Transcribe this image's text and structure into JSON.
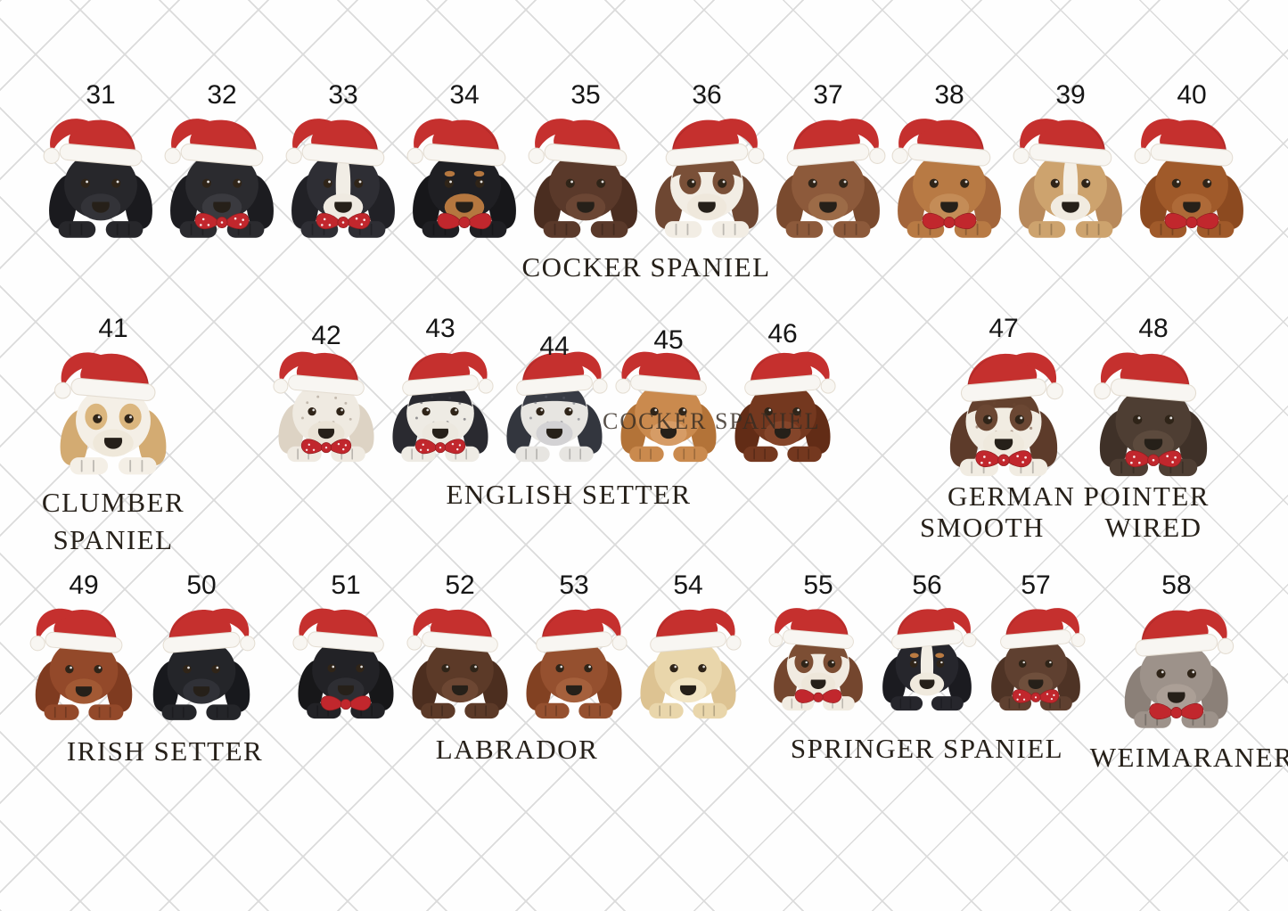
{
  "background": {
    "pattern": "diagonal-grid",
    "line_color": "#dbdbdb",
    "bg_color": "#fefefe"
  },
  "watermark": {
    "text": "COCKER SPANIEL"
  },
  "palette": {
    "hat_red": "#c5302e",
    "hat_fur": "#f8f6f2",
    "bow_red": "#c1272d",
    "label_color": "#262019",
    "number_color": "#161616"
  },
  "groups": [
    {
      "id": "cocker-spaniel",
      "label": "COCKER SPANIEL",
      "dogs": [
        {
          "number": "31",
          "coat": "#27272b",
          "ear": "#1a1a1e",
          "muzzle": "#333338",
          "bow": "none",
          "hat_tilt": "left"
        },
        {
          "number": "32",
          "coat": "#2b2b2f",
          "ear": "#1c1c20",
          "muzzle": "#3a3a3f",
          "bow": "polka",
          "hat_tilt": "left"
        },
        {
          "number": "33",
          "coat": "#2e2e34",
          "ear": "#212126",
          "muzzle": "#efeae1",
          "blaze": "#f1ede5",
          "bow": "polka",
          "hat_tilt": "left"
        },
        {
          "number": "34",
          "coat": "#1f1f23",
          "ear": "#17171a",
          "muzzle": "#b5773f",
          "brow": "#b5773f",
          "bow": "solid",
          "hat_tilt": "left"
        },
        {
          "number": "35",
          "coat": "#5a392a",
          "ear": "#4a2d20",
          "muzzle": "#6b4634",
          "bow": "none",
          "hat_tilt": "left"
        },
        {
          "number": "36",
          "coat": "#f2ede4",
          "ear": "#6e4732",
          "muzzle": "#efe8dc",
          "crown": "#7a5038",
          "eye_patch": "#7a5038",
          "bow": "none",
          "hat_tilt": "right"
        },
        {
          "number": "37",
          "coat": "#8d5a3b",
          "ear": "#7a4a2e",
          "muzzle": "#9c6b47",
          "bow": "none",
          "hat_tilt": "right"
        },
        {
          "number": "38",
          "coat": "#b87a44",
          "ear": "#a3653a",
          "muzzle": "#c48c57",
          "bow": "solid",
          "hat_tilt": "left"
        },
        {
          "number": "39",
          "coat": "#cda36e",
          "ear": "#b8895b",
          "muzzle": "#f1ebe0",
          "blaze": "#f4efe6",
          "bow": "none",
          "hat_tilt": "left"
        },
        {
          "number": "40",
          "coat": "#a05a2a",
          "ear": "#8c4a20",
          "muzzle": "#ae6a38",
          "bow": "solid",
          "hat_tilt": "left"
        }
      ]
    },
    {
      "id": "clumber-spaniel",
      "label_lines": [
        "CLUMBER",
        "SPANIEL"
      ],
      "dogs": [
        {
          "number": "41",
          "coat": "#f4efe6",
          "ear": "#d3ab72",
          "muzzle": "#efe8da",
          "eye_patch": "#dbb67e",
          "bow": "none",
          "hat_tilt": "left"
        }
      ]
    },
    {
      "id": "english-setter",
      "label": "ENGLISH SETTER",
      "dogs": [
        {
          "number": "42",
          "coat": "#efeae1",
          "ear": "#ddd3c4",
          "muzzle": "#eae3d6",
          "ticking": "#97897a",
          "bow": "polka",
          "hat_tilt": "left"
        },
        {
          "number": "43",
          "coat": "#eeebe4",
          "ear": "#2a2a30",
          "muzzle": "#ece8df",
          "crown": "#2a2a30",
          "ticking": "#3c3c44",
          "bow": "polka",
          "hat_tilt": "right"
        },
        {
          "number": "44",
          "coat": "#e7e5e1",
          "ear": "#33363e",
          "muzzle": "#d3d2d4",
          "crown": "#383b44",
          "ticking": "#5a5e68",
          "bow": "none",
          "hat_tilt": "right"
        },
        {
          "number": "45",
          "coat": "#ca8a4e",
          "ear": "#b37338",
          "muzzle": "#d69c66",
          "bow": "none",
          "hat_tilt": "left"
        },
        {
          "number": "46",
          "coat": "#74381f",
          "ear": "#622c16",
          "muzzle": "#84452a",
          "bow": "none",
          "hat_tilt": "right"
        }
      ]
    },
    {
      "id": "german-pointer",
      "label": "GERMAN POINTER",
      "sublabels": [
        "SMOOTH",
        "WIRED"
      ],
      "dogs": [
        {
          "number": "47",
          "coat": "#f1ece2",
          "ear": "#5d3b2a",
          "muzzle": "#efe9dd",
          "crown": "#64412e",
          "eye_patch": "#6b4733",
          "ticking": "#6b4733",
          "bow": "polka",
          "hat_tilt": "right"
        },
        {
          "number": "48",
          "coat": "#4e3e33",
          "ear": "#3f3128",
          "muzzle": "#5c4a3d",
          "bow": "polka",
          "hat_tilt": "left"
        }
      ]
    },
    {
      "id": "irish-setter",
      "label": "IRISH SETTER",
      "dogs": [
        {
          "number": "49",
          "coat": "#93492a",
          "ear": "#7f3b20",
          "muzzle": "#a25934",
          "bow": "none",
          "hat_tilt": "left"
        },
        {
          "number": "50",
          "coat": "#242529",
          "ear": "#18191d",
          "muzzle": "#303137",
          "bow": "none",
          "hat_tilt": "right"
        }
      ]
    },
    {
      "id": "labrador",
      "label": "LABRADOR",
      "dogs": [
        {
          "number": "51",
          "coat": "#222226",
          "ear": "#171719",
          "muzzle": "#2e2e33",
          "bow": "solid",
          "hat_tilt": "left"
        },
        {
          "number": "52",
          "coat": "#5c3a28",
          "ear": "#4c2e1f",
          "muzzle": "#6d4733",
          "bow": "none",
          "hat_tilt": "left"
        },
        {
          "number": "53",
          "coat": "#95502f",
          "ear": "#824122",
          "muzzle": "#a5603c",
          "bow": "none",
          "hat_tilt": "right"
        },
        {
          "number": "54",
          "coat": "#e9d6ab",
          "ear": "#ddc392",
          "muzzle": "#f2e5c4",
          "bow": "none",
          "hat_tilt": "right"
        }
      ]
    },
    {
      "id": "springer-spaniel",
      "label": "SPRINGER SPANIEL",
      "dogs": [
        {
          "number": "55",
          "coat": "#f1ebe1",
          "ear": "#74462e",
          "muzzle": "#eee7da",
          "crown": "#7c4e34",
          "eye_patch": "#7c4e34",
          "bow": "solid",
          "hat_tilt": "left"
        },
        {
          "number": "56",
          "coat": "#26262c",
          "ear": "#1b1b20",
          "muzzle": "#f0eade",
          "blaze": "#f2ede4",
          "brow": "#bb7b42",
          "bow": "none",
          "hat_tilt": "right"
        },
        {
          "number": "57",
          "coat": "#5f4030",
          "ear": "#4e3325",
          "muzzle": "#6f4f3c",
          "bow": "polka",
          "hat_tilt": "right"
        }
      ]
    },
    {
      "id": "weimaraner",
      "label": "WEIMARANER",
      "dogs": [
        {
          "number": "58",
          "coat": "#9d928a",
          "ear": "#8b8078",
          "muzzle": "#ab9f96",
          "bow": "solid",
          "hat_tilt": "right"
        }
      ]
    }
  ]
}
